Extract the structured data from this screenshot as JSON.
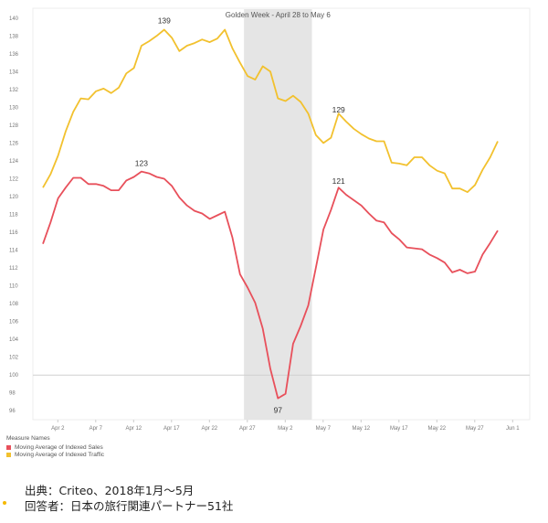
{
  "chart_data": {
    "type": "line",
    "band": {
      "label": "Golden Week - April 28 to May 6",
      "start": "Apr 28",
      "end": "May 6",
      "color": "#e5e5e5"
    },
    "x_ticks": [
      "Apr 2",
      "Apr 7",
      "Apr 12",
      "Apr 17",
      "Apr 22",
      "Apr 27",
      "May 2",
      "May 7",
      "May 12",
      "May 17",
      "May 22",
      "May 27",
      "Jun 1"
    ],
    "y_ticks": [
      96,
      98,
      100,
      102,
      104,
      106,
      108,
      110,
      112,
      114,
      116,
      118,
      120,
      122,
      124,
      126,
      128,
      130,
      132,
      134,
      136,
      138,
      140
    ],
    "ylim": [
      95,
      141
    ],
    "reference_line": 100,
    "grid": false,
    "legend": {
      "title": "Measure Names",
      "position": "bottom-left",
      "items": [
        {
          "name": "Moving Average of Indexed Sales",
          "color": "#e8505b"
        },
        {
          "name": "Moving Average of Indexed Traffic",
          "color": "#f2c12e"
        }
      ]
    },
    "series": [
      {
        "name": "Moving Average of Indexed Traffic",
        "color": "#f2c12e",
        "points": [
          [
            "Apr 1",
            121.0
          ],
          [
            "Apr 2",
            122.5
          ],
          [
            "Apr 3",
            124.6
          ],
          [
            "Apr 4",
            127.3
          ],
          [
            "Apr 5",
            129.5
          ],
          [
            "Apr 6",
            131.0
          ],
          [
            "Apr 7",
            130.9
          ],
          [
            "Apr 8",
            131.8
          ],
          [
            "Apr 9",
            132.1
          ],
          [
            "Apr 10",
            131.6
          ],
          [
            "Apr 11",
            132.2
          ],
          [
            "Apr 12",
            133.8
          ],
          [
            "Apr 13",
            134.4
          ],
          [
            "Apr 14",
            136.9
          ],
          [
            "Apr 15",
            137.4
          ],
          [
            "Apr 16",
            138.0
          ],
          [
            "Apr 17",
            138.7
          ],
          [
            "Apr 18",
            137.8
          ],
          [
            "Apr 19",
            136.3
          ],
          [
            "Apr 20",
            136.9
          ],
          [
            "Apr 21",
            137.2
          ],
          [
            "Apr 22",
            137.6
          ],
          [
            "Apr 23",
            137.3
          ],
          [
            "Apr 24",
            137.7
          ],
          [
            "Apr 25",
            138.7
          ],
          [
            "Apr 26",
            136.6
          ],
          [
            "Apr 27",
            135.0
          ],
          [
            "Apr 28",
            133.5
          ],
          [
            "Apr 29",
            133.1
          ],
          [
            "Apr 30",
            134.6
          ],
          [
            "May 1",
            134.0
          ],
          [
            "May 2",
            131.0
          ],
          [
            "May 3",
            130.7
          ],
          [
            "May 4",
            131.3
          ],
          [
            "May 5",
            130.6
          ],
          [
            "May 6",
            129.3
          ],
          [
            "May 7",
            126.9
          ],
          [
            "May 8",
            126.0
          ],
          [
            "May 9",
            126.6
          ],
          [
            "May 10",
            129.3
          ],
          [
            "May 11",
            128.4
          ],
          [
            "May 12",
            127.6
          ],
          [
            "May 13",
            127.0
          ],
          [
            "May 14",
            126.5
          ],
          [
            "May 15",
            126.2
          ],
          [
            "May 16",
            126.2
          ],
          [
            "May 17",
            123.8
          ],
          [
            "May 18",
            123.7
          ],
          [
            "May 19",
            123.5
          ],
          [
            "May 20",
            124.4
          ],
          [
            "May 21",
            124.4
          ],
          [
            "May 22",
            123.5
          ],
          [
            "May 23",
            122.9
          ],
          [
            "May 24",
            122.6
          ],
          [
            "May 25",
            120.9
          ],
          [
            "May 26",
            120.9
          ],
          [
            "May 27",
            120.5
          ],
          [
            "May 28",
            121.3
          ],
          [
            "May 29",
            123.0
          ],
          [
            "May 30",
            124.4
          ],
          [
            "May 31",
            126.2
          ]
        ]
      },
      {
        "name": "Moving Average of Indexed Sales",
        "color": "#e8505b",
        "points": [
          [
            "Apr 1",
            114.7
          ],
          [
            "Apr 2",
            117.1
          ],
          [
            "Apr 3",
            119.8
          ],
          [
            "Apr 4",
            121.0
          ],
          [
            "Apr 5",
            122.1
          ],
          [
            "Apr 6",
            122.1
          ],
          [
            "Apr 7",
            121.4
          ],
          [
            "Apr 8",
            121.4
          ],
          [
            "Apr 9",
            121.2
          ],
          [
            "Apr 10",
            120.7
          ],
          [
            "Apr 11",
            120.7
          ],
          [
            "Apr 12",
            121.8
          ],
          [
            "Apr 13",
            122.2
          ],
          [
            "Apr 14",
            122.8
          ],
          [
            "Apr 15",
            122.6
          ],
          [
            "Apr 16",
            122.2
          ],
          [
            "Apr 17",
            122.0
          ],
          [
            "Apr 18",
            121.2
          ],
          [
            "Apr 19",
            119.9
          ],
          [
            "Apr 20",
            119.0
          ],
          [
            "Apr 21",
            118.4
          ],
          [
            "Apr 22",
            118.1
          ],
          [
            "Apr 23",
            117.5
          ],
          [
            "Apr 24",
            117.9
          ],
          [
            "Apr 25",
            118.3
          ],
          [
            "Apr 26",
            115.4
          ],
          [
            "Apr 27",
            111.3
          ],
          [
            "Apr 28",
            109.8
          ],
          [
            "Apr 29",
            108.1
          ],
          [
            "Apr 30",
            105.2
          ],
          [
            "May 1",
            100.7
          ],
          [
            "May 2",
            97.4
          ],
          [
            "May 3",
            97.9
          ],
          [
            "May 4",
            103.5
          ],
          [
            "May 5",
            105.5
          ],
          [
            "May 6",
            107.8
          ],
          [
            "May 7",
            112.0
          ],
          [
            "May 8",
            116.3
          ],
          [
            "May 9",
            118.5
          ],
          [
            "May 10",
            121.0
          ],
          [
            "May 11",
            120.2
          ],
          [
            "May 12",
            119.6
          ],
          [
            "May 13",
            119.0
          ],
          [
            "May 14",
            118.1
          ],
          [
            "May 15",
            117.3
          ],
          [
            "May 16",
            117.1
          ],
          [
            "May 17",
            115.9
          ],
          [
            "May 18",
            115.2
          ],
          [
            "May 19",
            114.3
          ],
          [
            "May 20",
            114.2
          ],
          [
            "May 21",
            114.1
          ],
          [
            "May 22",
            113.5
          ],
          [
            "May 23",
            113.1
          ],
          [
            "May 24",
            112.6
          ],
          [
            "May 25",
            111.5
          ],
          [
            "May 26",
            111.8
          ],
          [
            "May 27",
            111.4
          ],
          [
            "May 28",
            111.6
          ],
          [
            "May 29",
            113.5
          ],
          [
            "May 30",
            114.8
          ],
          [
            "May 31",
            116.2
          ]
        ]
      }
    ],
    "annotations": [
      {
        "text": "139",
        "series": "Moving Average of Indexed Traffic",
        "at": "Apr 17",
        "value": 139
      },
      {
        "text": "129",
        "series": "Moving Average of Indexed Traffic",
        "at": "May 10",
        "value": 129
      },
      {
        "text": "123",
        "series": "Moving Average of Indexed Sales",
        "at": "Apr 14",
        "value": 123
      },
      {
        "text": "121",
        "series": "Moving Average of Indexed Sales",
        "at": "May 10",
        "value": 121
      },
      {
        "text": "97",
        "series": "Moving Average of Indexed Sales",
        "at": "May 2",
        "value": 97,
        "below": true
      }
    ]
  },
  "footer": {
    "source": "出典：Criteo、2018年1月～5月",
    "respondents": "回答者：日本の旅行関連パートナー51社"
  }
}
